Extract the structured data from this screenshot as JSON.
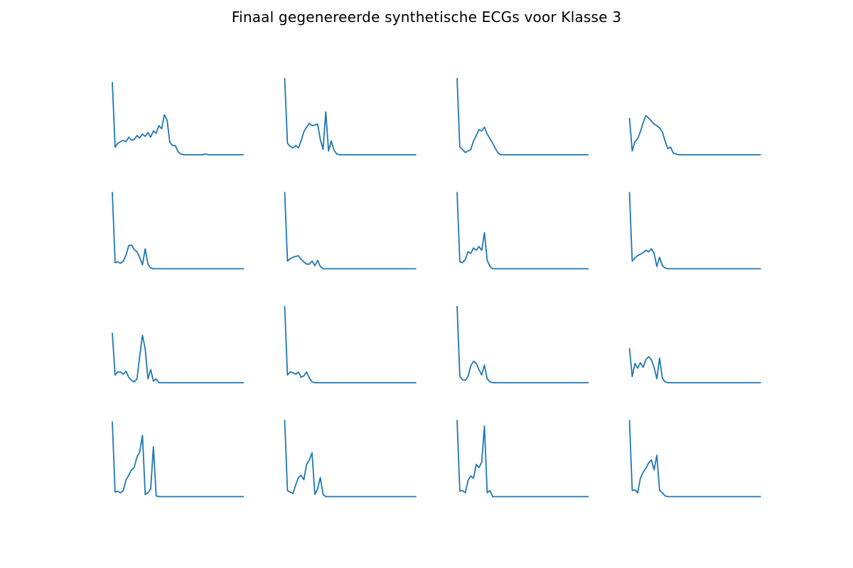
{
  "title": "Finaal gegenereerde synthetische ECGs voor Klasse 3",
  "chart_data": {
    "type": "line",
    "layout": "4x4 small multiples",
    "axes_visible": false,
    "grid": false,
    "line_color": "#1f77b4",
    "ylim": [
      0,
      1
    ],
    "panels": [
      {
        "v": [
          0.95,
          0.1,
          0.15,
          0.17,
          0.19,
          0.17,
          0.23,
          0.19,
          0.2,
          0.25,
          0.22,
          0.27,
          0.24,
          0.29,
          0.23,
          0.31,
          0.28,
          0.38,
          0.34,
          0.52,
          0.45,
          0.16,
          0.12,
          0.12,
          0.04,
          0.01,
          0,
          0,
          0,
          0,
          0,
          0,
          0,
          0,
          0.01,
          0,
          0,
          0,
          0,
          0,
          0,
          0,
          0,
          0,
          0,
          0,
          0,
          0,
          0
        ]
      },
      {
        "v": [
          1.0,
          0.15,
          0.11,
          0.09,
          0.12,
          0.09,
          0.18,
          0.3,
          0.36,
          0.41,
          0.38,
          0.39,
          0.4,
          0.2,
          0.07,
          0.56,
          0.05,
          0.18,
          0.06,
          0.01,
          0,
          0,
          0,
          0,
          0,
          0,
          0,
          0,
          0,
          0,
          0,
          0,
          0,
          0,
          0,
          0,
          0,
          0,
          0,
          0,
          0,
          0,
          0,
          0,
          0,
          0,
          0,
          0,
          0
        ]
      },
      {
        "v": [
          1.0,
          0.1,
          0.07,
          0.03,
          0.05,
          0.07,
          0.18,
          0.25,
          0.33,
          0.31,
          0.36,
          0.27,
          0.21,
          0.15,
          0.08,
          0.02,
          0,
          0,
          0,
          0,
          0,
          0,
          0,
          0,
          0,
          0,
          0,
          0,
          0,
          0,
          0,
          0,
          0,
          0,
          0,
          0,
          0,
          0,
          0,
          0,
          0,
          0,
          0,
          0,
          0,
          0,
          0,
          0,
          0
        ]
      },
      {
        "v": [
          0.48,
          0.05,
          0.17,
          0.21,
          0.3,
          0.42,
          0.51,
          0.48,
          0.44,
          0.4,
          0.38,
          0.35,
          0.3,
          0.18,
          0.08,
          0.1,
          0.02,
          0.01,
          0,
          0,
          0,
          0,
          0,
          0,
          0,
          0,
          0,
          0,
          0,
          0,
          0,
          0,
          0,
          0,
          0,
          0,
          0,
          0,
          0,
          0,
          0,
          0,
          0,
          0,
          0,
          0,
          0,
          0,
          0
        ]
      },
      {
        "v": [
          1.0,
          0.08,
          0.09,
          0.07,
          0.1,
          0.18,
          0.3,
          0.31,
          0.25,
          0.22,
          0.15,
          0.05,
          0.26,
          0.06,
          0.01,
          0,
          0,
          0,
          0,
          0,
          0,
          0,
          0,
          0,
          0,
          0,
          0,
          0,
          0,
          0,
          0,
          0,
          0,
          0,
          0,
          0,
          0,
          0,
          0,
          0,
          0,
          0,
          0,
          0,
          0,
          0,
          0,
          0,
          0
        ]
      },
      {
        "v": [
          1.0,
          0.1,
          0.13,
          0.15,
          0.16,
          0.17,
          0.12,
          0.09,
          0.06,
          0.06,
          0.1,
          0.04,
          0.11,
          0.03,
          0,
          0,
          0,
          0,
          0,
          0,
          0,
          0,
          0,
          0,
          0,
          0,
          0,
          0,
          0,
          0,
          0,
          0,
          0,
          0,
          0,
          0,
          0,
          0,
          0,
          0,
          0,
          0,
          0,
          0,
          0,
          0,
          0,
          0,
          0
        ]
      },
      {
        "v": [
          1.0,
          0.09,
          0.08,
          0.12,
          0.22,
          0.2,
          0.27,
          0.24,
          0.29,
          0.24,
          0.47,
          0.11,
          0.03,
          0,
          0,
          0,
          0,
          0,
          0,
          0,
          0,
          0,
          0,
          0,
          0,
          0,
          0,
          0,
          0,
          0,
          0,
          0,
          0,
          0,
          0,
          0,
          0,
          0,
          0,
          0,
          0,
          0,
          0,
          0,
          0,
          0,
          0,
          0,
          0
        ]
      },
      {
        "v": [
          1.0,
          0.1,
          0.14,
          0.17,
          0.19,
          0.21,
          0.24,
          0.22,
          0.26,
          0.2,
          0.03,
          0.15,
          0.04,
          0.01,
          0,
          0,
          0,
          0,
          0,
          0,
          0,
          0,
          0,
          0,
          0,
          0,
          0,
          0,
          0,
          0,
          0,
          0,
          0,
          0,
          0,
          0,
          0,
          0,
          0,
          0,
          0,
          0,
          0,
          0,
          0,
          0,
          0,
          0,
          0
        ]
      },
      {
        "v": [
          0.65,
          0.1,
          0.14,
          0.14,
          0.11,
          0.15,
          0.07,
          0.03,
          0.01,
          0.05,
          0.34,
          0.62,
          0.44,
          0.05,
          0.17,
          0.02,
          0.05,
          0,
          0,
          0,
          0,
          0,
          0,
          0,
          0,
          0,
          0,
          0,
          0,
          0,
          0,
          0,
          0,
          0,
          0,
          0,
          0,
          0,
          0,
          0,
          0,
          0,
          0,
          0,
          0,
          0,
          0,
          0,
          0
        ]
      },
      {
        "v": [
          1.0,
          0.1,
          0.14,
          0.13,
          0.11,
          0.14,
          0.07,
          0.09,
          0.14,
          0.06,
          0.01,
          0,
          0,
          0,
          0,
          0,
          0,
          0,
          0,
          0,
          0,
          0,
          0,
          0,
          0,
          0,
          0,
          0,
          0,
          0,
          0,
          0,
          0,
          0,
          0,
          0,
          0,
          0,
          0,
          0,
          0,
          0,
          0,
          0,
          0,
          0,
          0,
          0,
          0
        ]
      },
      {
        "v": [
          1.0,
          0.08,
          0.04,
          0.03,
          0.08,
          0.22,
          0.28,
          0.25,
          0.17,
          0.1,
          0.23,
          0.05,
          0.01,
          0,
          0,
          0,
          0,
          0,
          0,
          0,
          0,
          0,
          0,
          0,
          0,
          0,
          0,
          0,
          0,
          0,
          0,
          0,
          0,
          0,
          0,
          0,
          0,
          0,
          0,
          0,
          0,
          0,
          0,
          0,
          0,
          0,
          0,
          0,
          0
        ]
      },
      {
        "v": [
          0.45,
          0.08,
          0.25,
          0.19,
          0.26,
          0.2,
          0.3,
          0.34,
          0.3,
          0.2,
          0.05,
          0.32,
          0.06,
          0.01,
          0,
          0,
          0,
          0,
          0,
          0,
          0,
          0,
          0,
          0,
          0,
          0,
          0,
          0,
          0,
          0,
          0,
          0,
          0,
          0,
          0,
          0,
          0,
          0,
          0,
          0,
          0,
          0,
          0,
          0,
          0,
          0,
          0,
          0,
          0
        ]
      },
      {
        "v": [
          0.98,
          0.06,
          0.07,
          0.05,
          0.08,
          0.22,
          0.28,
          0.35,
          0.38,
          0.52,
          0.58,
          0.8,
          0.03,
          0.05,
          0.1,
          0.65,
          0.01,
          0,
          0,
          0,
          0,
          0,
          0,
          0,
          0,
          0,
          0,
          0,
          0,
          0,
          0,
          0,
          0,
          0,
          0,
          0,
          0,
          0,
          0,
          0,
          0,
          0,
          0,
          0,
          0,
          0,
          0,
          0,
          0
        ]
      },
      {
        "v": [
          1.0,
          0.08,
          0.06,
          0.04,
          0.15,
          0.25,
          0.28,
          0.22,
          0.42,
          0.48,
          0.57,
          0.03,
          0.1,
          0.25,
          0.03,
          0,
          0,
          0,
          0,
          0,
          0,
          0,
          0,
          0,
          0,
          0,
          0,
          0,
          0,
          0,
          0,
          0,
          0,
          0,
          0,
          0,
          0,
          0,
          0,
          0,
          0,
          0,
          0,
          0,
          0,
          0,
          0,
          0,
          0
        ]
      },
      {
        "v": [
          1.0,
          0.07,
          0.08,
          0.05,
          0.21,
          0.27,
          0.24,
          0.42,
          0.38,
          0.45,
          0.92,
          0.05,
          0.08,
          0,
          0,
          0,
          0,
          0,
          0,
          0,
          0,
          0,
          0,
          0,
          0,
          0,
          0,
          0,
          0,
          0,
          0,
          0,
          0,
          0,
          0,
          0,
          0,
          0,
          0,
          0,
          0,
          0,
          0,
          0,
          0,
          0,
          0,
          0,
          0
        ]
      },
      {
        "v": [
          1.0,
          0.08,
          0.09,
          0.05,
          0.24,
          0.32,
          0.37,
          0.44,
          0.48,
          0.35,
          0.54,
          0.08,
          0.05,
          0.01,
          0,
          0,
          0,
          0,
          0,
          0,
          0,
          0,
          0,
          0,
          0,
          0,
          0,
          0,
          0,
          0,
          0,
          0,
          0,
          0,
          0,
          0,
          0,
          0,
          0,
          0,
          0,
          0,
          0,
          0,
          0,
          0,
          0,
          0,
          0
        ]
      }
    ]
  }
}
